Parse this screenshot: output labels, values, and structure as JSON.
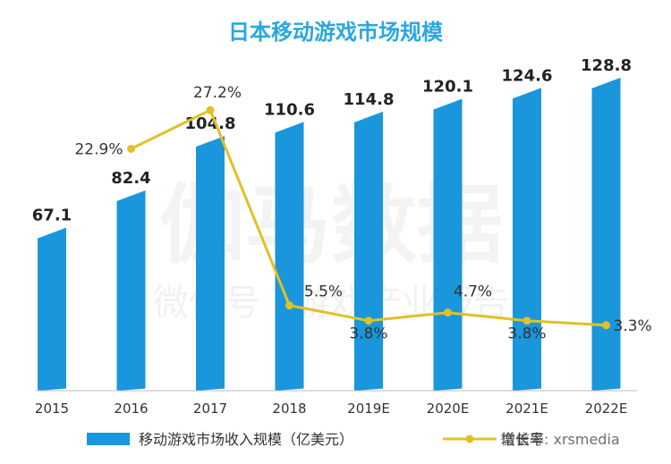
{
  "chart_data": {
    "type": "bar",
    "title": "日本移动游戏市场规模",
    "categories": [
      "2015",
      "2016",
      "2017",
      "2018",
      "2019E",
      "2020E",
      "2021E",
      "2022E"
    ],
    "series": [
      {
        "name": "移动游戏市场收入规模（亿美元）",
        "type": "bar",
        "values": [
          67.1,
          82.4,
          104.8,
          110.6,
          114.8,
          120.1,
          124.6,
          128.8
        ],
        "labels": [
          "67.1",
          "82.4",
          "104.8",
          "110.6",
          "114.8",
          "120.1",
          "124.6",
          "128.8"
        ],
        "color": "#1a96dc"
      },
      {
        "name": "增长率",
        "type": "line",
        "values": [
          null,
          22.9,
          27.2,
          5.5,
          3.8,
          4.7,
          3.8,
          3.3
        ],
        "labels": [
          "",
          "22.9%",
          "27.2%",
          "5.5%",
          "3.8%",
          "4.7%",
          "3.8%",
          "3.3%"
        ],
        "color": "#e2c026"
      }
    ],
    "ylim": [
      0,
      135
    ],
    "y2lim": [
      0,
      30
    ],
    "grid": false,
    "legend": "bottom"
  },
  "watermark": {
    "main": "伽马数据",
    "sub": "微信号 · 游戏产业报告",
    "wechat": "微信号: xrsmedia"
  }
}
